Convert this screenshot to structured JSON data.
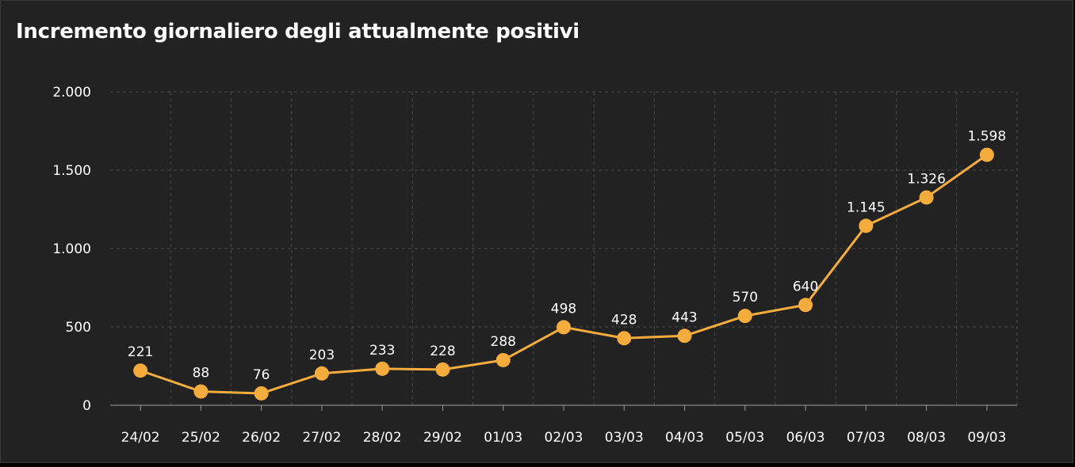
{
  "chart_data": {
    "type": "line",
    "title": "Incremento giornaliero degli attualmente positivi",
    "xlabel": "",
    "ylabel": "",
    "categories": [
      "24/02",
      "25/02",
      "26/02",
      "27/02",
      "28/02",
      "29/02",
      "01/03",
      "02/03",
      "03/03",
      "04/03",
      "05/03",
      "06/03",
      "07/03",
      "08/03",
      "09/03"
    ],
    "series": [
      {
        "values": [
          221,
          88,
          76,
          203,
          233,
          228,
          288,
          498,
          428,
          443,
          570,
          640,
          1145,
          1326,
          1598
        ],
        "value_labels": [
          "221",
          "88",
          "76",
          "203",
          "233",
          "228",
          "288",
          "498",
          "428",
          "443",
          "570",
          "640",
          "1.145",
          "1.326",
          "1.598"
        ],
        "color": "#f4ac3c"
      }
    ],
    "ylim": [
      0,
      2000
    ],
    "yticks": [
      0,
      500,
      1000,
      1500,
      2000
    ],
    "ytick_labels": [
      "0",
      "500",
      "1.000",
      "1.500",
      "2.000"
    ],
    "grid": true,
    "legend": "none",
    "background": "#222222"
  }
}
